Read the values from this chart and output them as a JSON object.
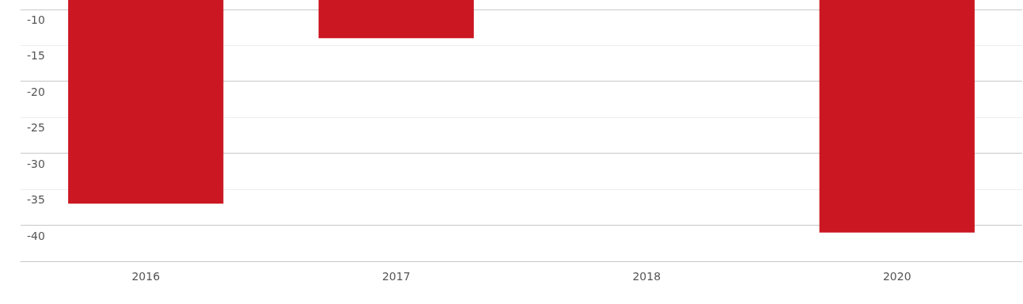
{
  "chart_data": {
    "type": "bar",
    "categories": [
      "2016",
      "2017",
      "2018",
      "2020"
    ],
    "values": [
      -37.0,
      -14.0,
      null,
      -41.0
    ],
    "color": "#cb1722",
    "ylim": [
      -45,
      -8.7
    ],
    "yticks": [
      {
        "value": -45,
        "label": null
      },
      -40,
      -35,
      -30,
      -25,
      -20,
      -15,
      -10
    ],
    "grid": "y"
  }
}
